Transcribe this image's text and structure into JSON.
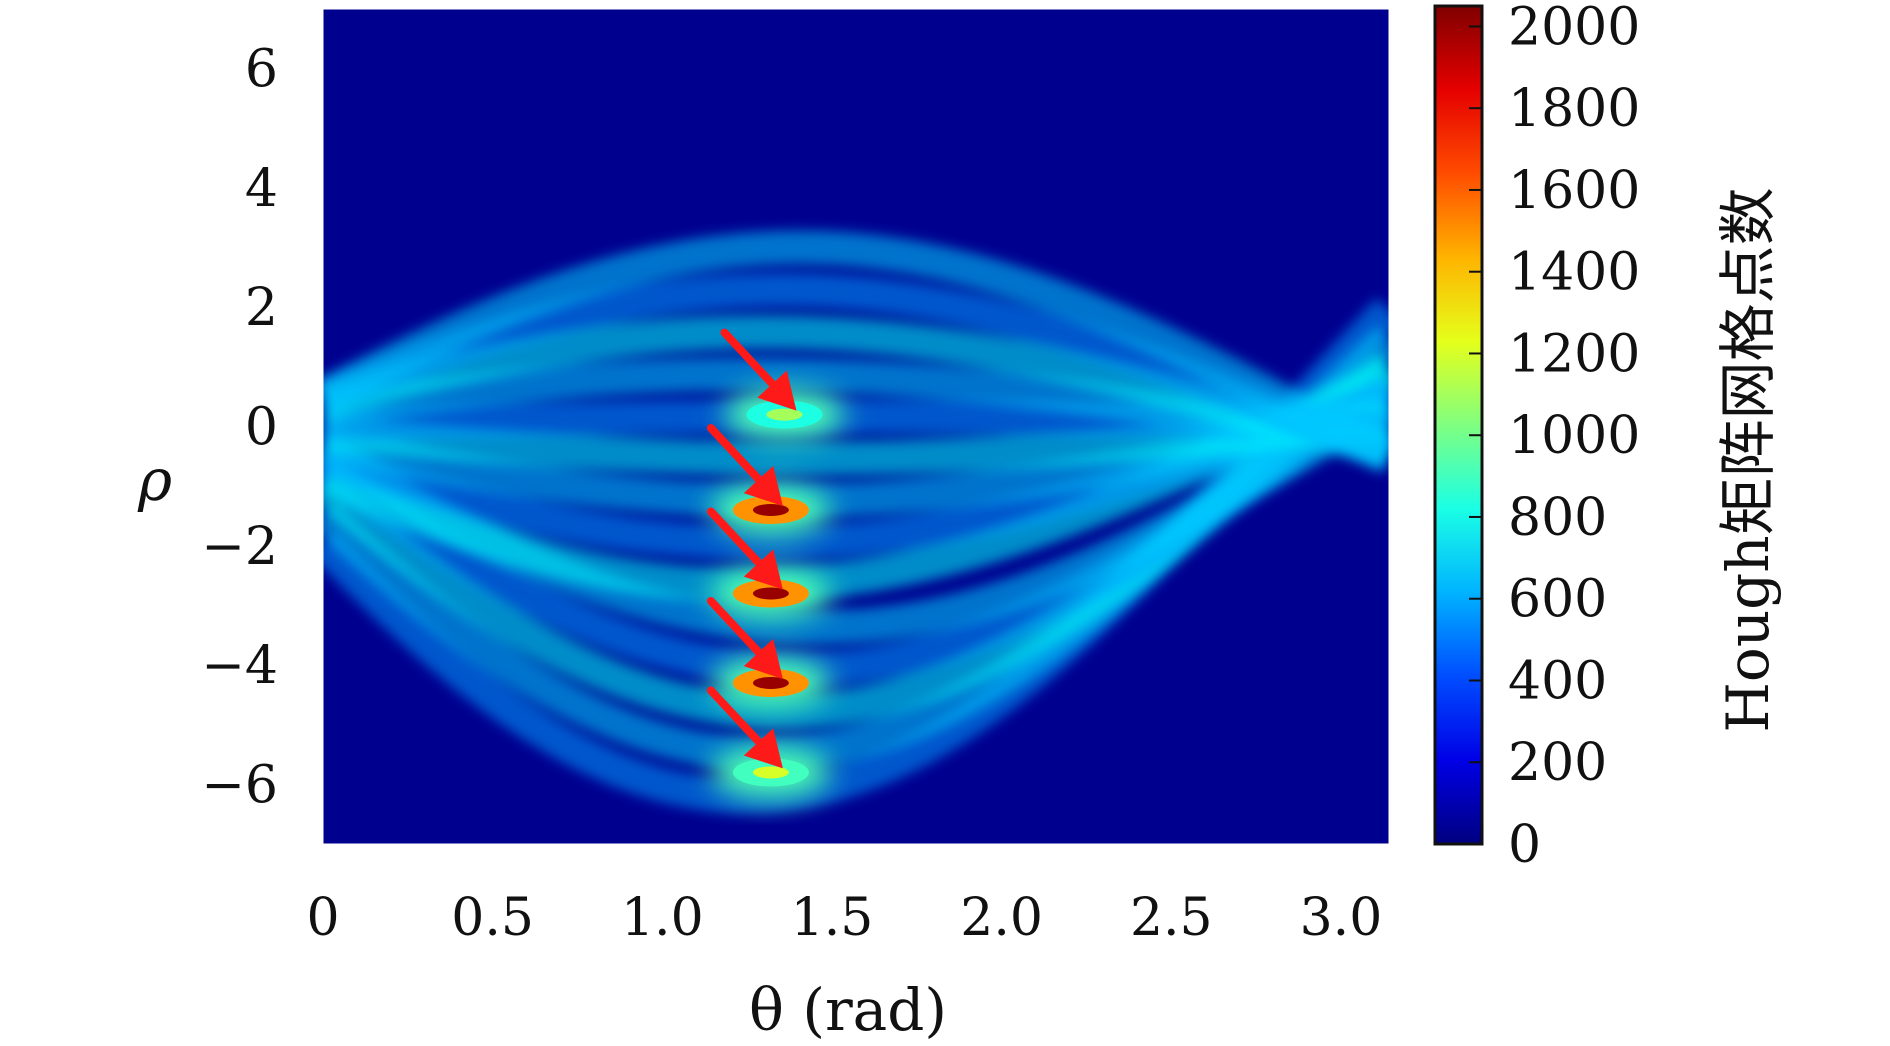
{
  "chart_data": {
    "type": "heatmap",
    "title": "",
    "xlabel": "θ (rad)",
    "ylabel": "ρ",
    "colorbar_label": "Hough矩阵网格点数",
    "colormap": "jet",
    "xlim": [
      0,
      3.14159
    ],
    "ylim": [
      -7,
      7
    ],
    "x_ticks": [
      0,
      0.5,
      1.0,
      1.5,
      2.0,
      2.5,
      3.0
    ],
    "x_tick_labels": [
      "0",
      "0.5",
      "1.0",
      "1.5",
      "2.0",
      "2.5",
      "3.0"
    ],
    "y_ticks": [
      6,
      4,
      2,
      0,
      -2,
      -4,
      -6
    ],
    "y_tick_labels": [
      "6",
      "4",
      "2",
      "0",
      "−2",
      "−4",
      "−6"
    ],
    "colorbar_range": [
      0,
      2050
    ],
    "colorbar_ticks": [
      0,
      200,
      400,
      600,
      800,
      1000,
      1200,
      1400,
      1600,
      1800,
      2000
    ],
    "colorbar_tick_labels": [
      "0",
      "200",
      "400",
      "600",
      "800",
      "1000",
      "1200",
      "1400",
      "1600",
      "1800",
      "2000"
    ],
    "background_color": "#00008f",
    "peaks": [
      {
        "theta": 1.36,
        "rho": 0.2,
        "count": 1100
      },
      {
        "theta": 1.32,
        "rho": -1.4,
        "count": 2000
      },
      {
        "theta": 1.32,
        "rho": -2.8,
        "count": 2000
      },
      {
        "theta": 1.32,
        "rho": -4.3,
        "count": 2000
      },
      {
        "theta": 1.32,
        "rho": -5.8,
        "count": 1200
      }
    ],
    "annotations": [
      {
        "type": "arrow",
        "color": "#ff1a1a",
        "points_to_peak": 0
      },
      {
        "type": "arrow",
        "color": "#ff1a1a",
        "points_to_peak": 1
      },
      {
        "type": "arrow",
        "color": "#ff1a1a",
        "points_to_peak": 2
      },
      {
        "type": "arrow",
        "color": "#ff1a1a",
        "points_to_peak": 3
      },
      {
        "type": "arrow",
        "color": "#ff1a1a",
        "points_to_peak": 4
      }
    ]
  }
}
